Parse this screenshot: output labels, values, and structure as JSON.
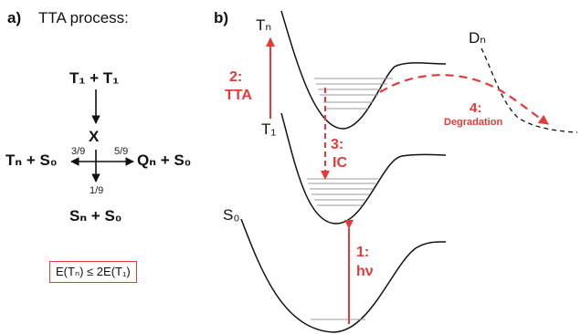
{
  "panel_a": {
    "label": "a)",
    "title": "TTA process:",
    "reactants": "T₁ + T₁",
    "intermediate": "X",
    "channels": [
      {
        "product": "Tₙ + S₀",
        "fraction": "3/9"
      },
      {
        "product": "Qₙ + S₀",
        "fraction": "5/9"
      },
      {
        "product": "Sₙ + S₀",
        "fraction": "1/9"
      }
    ],
    "condition": "E(Tₙ) ≤ 2E(T₁)"
  },
  "panel_b": {
    "label": "b)",
    "states": {
      "Tn": "Tₙ",
      "T1": "T₁",
      "S0": "S₀",
      "Dn": "Dₙ"
    },
    "processes": {
      "tta_num": "2:",
      "tta": "TTA",
      "ic_num": "3:",
      "ic": "IC",
      "hv_num": "1:",
      "hv": "hν",
      "deg_num": "4:",
      "deg": "Degradation"
    },
    "colors": {
      "accent": "#e63939",
      "curve": "#111111",
      "level": "#9a9a9a"
    }
  }
}
